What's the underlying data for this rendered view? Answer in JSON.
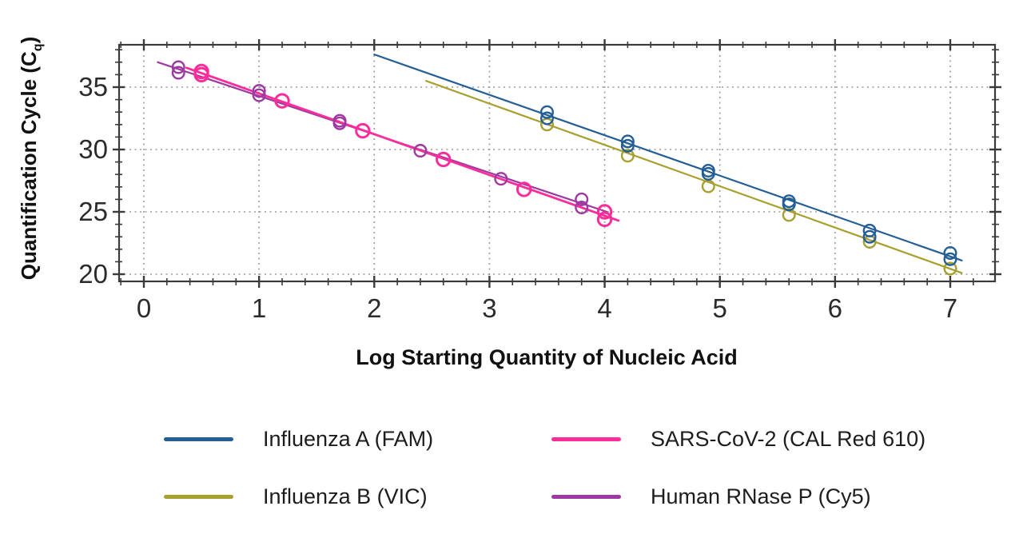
{
  "page": {
    "background": "#ffffff"
  },
  "y_axis_title": {
    "main": "Quantification Cycle (C",
    "sub": "q",
    "end": ")"
  },
  "chart_data": {
    "type": "scatter",
    "title": "",
    "xlabel": "Log Starting Quantity of Nucleic Acid",
    "ylabel": "Quantification Cycle (Cq)",
    "xlim": [
      -0.22,
      7.39
    ],
    "ylim": [
      19.4,
      38.4
    ],
    "x_ticks": [
      0,
      1,
      2,
      3,
      4,
      5,
      6,
      7
    ],
    "x_minor_step": 0.2,
    "y_ticks": [
      35,
      30,
      25,
      20
    ],
    "y_minor_step": 1,
    "grid": {
      "style": "dotted",
      "color": "#9a9a9a",
      "x_at": [
        0,
        1,
        2,
        3,
        4,
        5,
        6,
        7
      ],
      "y_at": [
        20,
        25,
        30,
        35
      ]
    },
    "legend_position": "bottom",
    "axis_color": "#3b3b3b",
    "tick_label_color": "#2b2b2b",
    "series": [
      {
        "name": "Influenza A (FAM)",
        "color": "#235F94",
        "marker": "open-circle",
        "points": [
          [
            3.5,
            33.0
          ],
          [
            3.5,
            32.5
          ],
          [
            4.2,
            30.65
          ],
          [
            4.2,
            30.3
          ],
          [
            4.9,
            28.3
          ],
          [
            4.9,
            28.05
          ],
          [
            5.6,
            25.85
          ],
          [
            5.6,
            25.6
          ],
          [
            6.3,
            23.5
          ],
          [
            6.3,
            23.0
          ],
          [
            7.0,
            21.7
          ],
          [
            7.0,
            21.2
          ]
        ],
        "trendline": {
          "x1": 2.0,
          "y1": 37.62,
          "x2": 7.1,
          "y2": 21.1
        }
      },
      {
        "name": "Influenza B (VIC)",
        "color": "#A7A02F",
        "marker": "open-circle",
        "points": [
          [
            3.5,
            32.0
          ],
          [
            4.2,
            29.5
          ],
          [
            4.9,
            27.05
          ],
          [
            5.6,
            24.75
          ],
          [
            6.3,
            22.6
          ],
          [
            7.0,
            20.45
          ]
        ],
        "trendline": {
          "x1": 2.45,
          "y1": 35.5,
          "x2": 7.1,
          "y2": 20.1
        }
      },
      {
        "name": "SARS-CoV-2 (CAL Red 610)",
        "color": "#FB2D9A",
        "marker": "open-circle",
        "points": [
          [
            0.5,
            36.25
          ],
          [
            0.5,
            36.0
          ],
          [
            1.2,
            33.9
          ],
          [
            1.9,
            31.5
          ],
          [
            2.6,
            29.2
          ],
          [
            3.3,
            26.8
          ],
          [
            4.0,
            25.0
          ],
          [
            4.0,
            24.4
          ]
        ],
        "trendline": {
          "x1": 0.37,
          "y1": 36.55,
          "x2": 4.12,
          "y2": 24.3
        }
      },
      {
        "name": "Human RNase P (Cy5)",
        "color": "#9D39A0",
        "marker": "open-circle",
        "points": [
          [
            0.3,
            36.6
          ],
          [
            0.3,
            36.15
          ],
          [
            1.0,
            34.7
          ],
          [
            1.0,
            34.35
          ],
          [
            1.7,
            32.3
          ],
          [
            1.7,
            32.1
          ],
          [
            2.4,
            29.9
          ],
          [
            3.1,
            27.65
          ],
          [
            3.8,
            26.0
          ],
          [
            3.8,
            25.35
          ]
        ],
        "trendline": {
          "x1": 0.12,
          "y1": 37.0,
          "x2": 4.02,
          "y2": 25.0
        }
      }
    ]
  }
}
